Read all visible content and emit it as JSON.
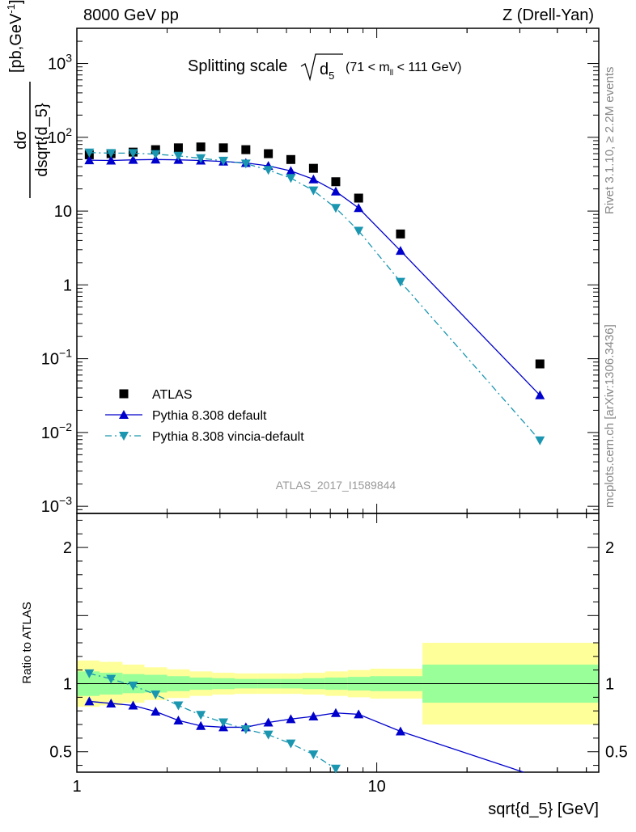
{
  "header": {
    "left": "8000 GeV pp",
    "right": "Z (Drell-Yan)"
  },
  "side_labels": {
    "rivet": "Rivet 3.1.10, ≥ 2.2M events",
    "mcplots": "mcplots.cern.ch [arXiv:1306.3436]"
  },
  "chart_data": [
    {
      "type": "scatter",
      "panel": "main",
      "title_prefix": "Splitting scale",
      "title_sqrt_var": "d",
      "title_sqrt_sub": "5",
      "title_range": "(71 < m",
      "title_range_sub": "ll",
      "title_range_end": " < 111 GeV)",
      "ylabel": "dσ / dsqrt{d_5} [pb,GeV⁻¹]",
      "ylabel_num": "dσ",
      "ylabel_den": "dsqrt{d_5}",
      "ylabel_unit": "[pb,GeV",
      "ylabel_unit_sup": "-1",
      "ylabel_unit_end": "]",
      "xscale": "log",
      "yscale": "log",
      "xlim": [
        1,
        55
      ],
      "ylim": [
        0.0008,
        3000
      ],
      "yticks": [
        {
          "v": 1000,
          "base": "10",
          "exp": "3"
        },
        {
          "v": 100,
          "base": "10",
          "exp": "2"
        },
        {
          "v": 10,
          "base": "10",
          "exp": ""
        },
        {
          "v": 1,
          "base": "1",
          "exp": ""
        },
        {
          "v": 0.1,
          "base": "10",
          "exp": "−1"
        },
        {
          "v": 0.01,
          "base": "10",
          "exp": "−2"
        },
        {
          "v": 0.001,
          "base": "10",
          "exp": "−3"
        }
      ],
      "legend_position": "bottom-left",
      "watermark": "ATLAS_2017_I1589844",
      "series": [
        {
          "name": "ATLAS",
          "style": "data",
          "color": "#000000",
          "marker": "square",
          "x": [
            1.1,
            1.3,
            1.54,
            1.83,
            2.18,
            2.59,
            3.08,
            3.66,
            4.35,
            5.17,
            6.15,
            7.3,
            8.7,
            12.0,
            35.0
          ],
          "y": [
            58,
            60,
            63,
            68,
            72,
            74,
            72,
            68,
            60,
            50,
            38,
            25,
            15,
            4.9,
            0.085
          ]
        },
        {
          "name": "Pythia 8.308 default",
          "style": "solid",
          "color": "#0000cc",
          "marker": "triangle-up",
          "x": [
            1.1,
            1.3,
            1.54,
            1.83,
            2.18,
            2.59,
            3.08,
            3.66,
            4.35,
            5.17,
            6.15,
            7.3,
            8.7,
            12.0,
            35.0
          ],
          "y": [
            49,
            48.5,
            49.5,
            50,
            49.5,
            48.5,
            47,
            45,
            41,
            35,
            27,
            18.5,
            11,
            2.9,
            0.032
          ]
        },
        {
          "name": "Pythia 8.308 vincia-default",
          "style": "dashdot",
          "color": "#1a96b0",
          "marker": "triangle-down",
          "x": [
            1.1,
            1.3,
            1.54,
            1.83,
            2.18,
            2.59,
            3.08,
            3.66,
            4.35,
            5.17,
            6.15,
            7.3,
            8.7,
            12.0,
            35.0
          ],
          "y": [
            62,
            61,
            61,
            59,
            56,
            52,
            48,
            44,
            36,
            28,
            19,
            11,
            5.4,
            1.1,
            0.0078
          ]
        }
      ]
    },
    {
      "type": "line",
      "panel": "ratio",
      "ylabel": "Ratio to ATLAS",
      "xlabel": "sqrt{d_5} [GeV]",
      "xscale": "log",
      "xlim": [
        1,
        55
      ],
      "ylim": [
        0.35,
        2.25
      ],
      "yticks": [
        {
          "v": 0.5,
          "label": "0.5"
        },
        {
          "v": 1,
          "label": "1"
        },
        {
          "v": 2,
          "label": "2"
        }
      ],
      "xticks": [
        {
          "v": 1,
          "label": "1"
        },
        {
          "v": 10,
          "label": "10"
        }
      ],
      "bands": {
        "edges": [
          1,
          1.19,
          1.42,
          1.68,
          2.0,
          2.38,
          2.83,
          3.36,
          4.0,
          4.76,
          5.66,
          6.73,
          8.0,
          9.51,
          14.2,
          55
        ],
        "green_half": [
          0.09,
          0.08,
          0.07,
          0.065,
          0.055,
          0.045,
          0.04,
          0.035,
          0.035,
          0.035,
          0.04,
          0.045,
          0.05,
          0.055,
          0.14
        ],
        "yellow_half": [
          0.17,
          0.16,
          0.14,
          0.12,
          0.105,
          0.09,
          0.08,
          0.075,
          0.075,
          0.075,
          0.08,
          0.09,
          0.1,
          0.11,
          0.3
        ],
        "green_color": "#99ff99",
        "yellow_color": "#ffff99"
      },
      "series": [
        {
          "name": "Pythia 8.308 default",
          "style": "solid",
          "color": "#0000cc",
          "marker": "triangle-up",
          "x": [
            1.1,
            1.3,
            1.54,
            1.83,
            2.18,
            2.59,
            3.08,
            3.66,
            4.35,
            5.17,
            6.15,
            7.3,
            8.7,
            12.0,
            35.0
          ],
          "y": [
            0.87,
            0.855,
            0.84,
            0.795,
            0.73,
            0.69,
            0.68,
            0.68,
            0.715,
            0.74,
            0.76,
            0.785,
            0.775,
            0.65,
            0.31
          ]
        },
        {
          "name": "Pythia 8.308 vincia-default",
          "style": "dashdot",
          "color": "#1a96b0",
          "marker": "triangle-down",
          "x": [
            1.1,
            1.3,
            1.54,
            1.83,
            2.18,
            2.59,
            3.08,
            3.66,
            4.35,
            5.17,
            6.15,
            7.3
          ],
          "y": [
            1.075,
            1.035,
            0.985,
            0.92,
            0.84,
            0.77,
            0.715,
            0.665,
            0.625,
            0.56,
            0.48,
            0.375
          ]
        }
      ]
    }
  ]
}
